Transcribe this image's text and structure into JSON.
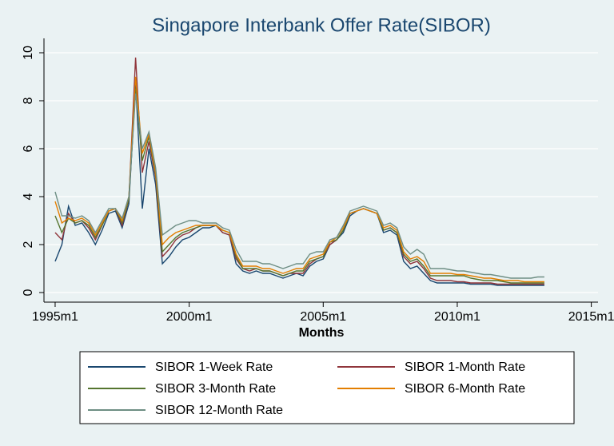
{
  "chart_data": {
    "type": "line",
    "title": "Singapore Interbank Offer Rate(SIBOR)",
    "x_label": "Months",
    "x": [
      420,
      423,
      426,
      429,
      432,
      435,
      438,
      441,
      444,
      447,
      450,
      453,
      456,
      459,
      462,
      465,
      468,
      471,
      474,
      477,
      480,
      483,
      486,
      489,
      492,
      495,
      498,
      501,
      504,
      507,
      510,
      513,
      516,
      519,
      522,
      525,
      528,
      531,
      534,
      537,
      540,
      543,
      546,
      549,
      552,
      555,
      558,
      561,
      564,
      567,
      570,
      573,
      576,
      579,
      582,
      585,
      588,
      591,
      594,
      597,
      600,
      603,
      606,
      609,
      612,
      615,
      618,
      621,
      624,
      627,
      630,
      633,
      636,
      639
    ],
    "series": [
      {
        "name": "SIBOR 1-Week Rate",
        "color": "#1a476f",
        "values": [
          1.3,
          2.0,
          3.6,
          2.8,
          2.9,
          2.5,
          2.0,
          2.6,
          3.3,
          3.4,
          2.7,
          3.7,
          8.7,
          3.5,
          6.0,
          4.5,
          1.2,
          1.5,
          1.9,
          2.2,
          2.3,
          2.5,
          2.7,
          2.7,
          2.8,
          2.5,
          2.4,
          1.2,
          0.9,
          0.8,
          0.9,
          0.8,
          0.8,
          0.7,
          0.6,
          0.7,
          0.8,
          0.7,
          1.1,
          1.3,
          1.4,
          2.0,
          2.2,
          2.5,
          3.2,
          3.4,
          3.5,
          3.4,
          3.3,
          2.5,
          2.6,
          2.4,
          1.3,
          1.0,
          1.1,
          0.8,
          0.5,
          0.4,
          0.4,
          0.4,
          0.4,
          0.4,
          0.35,
          0.35,
          0.35,
          0.35,
          0.3,
          0.3,
          0.3,
          0.3,
          0.3,
          0.3,
          0.3,
          0.3
        ]
      },
      {
        "name": "SIBOR 1-Month Rate",
        "color": "#90353b",
        "values": [
          2.5,
          2.2,
          3.3,
          2.9,
          3.0,
          2.7,
          2.2,
          2.8,
          3.4,
          3.5,
          2.8,
          3.9,
          9.8,
          5.0,
          6.3,
          4.8,
          1.5,
          1.8,
          2.2,
          2.4,
          2.5,
          2.7,
          2.8,
          2.8,
          2.8,
          2.5,
          2.4,
          1.4,
          1.0,
          0.9,
          1.0,
          0.9,
          0.9,
          0.8,
          0.7,
          0.8,
          0.8,
          0.8,
          1.2,
          1.4,
          1.5,
          2.0,
          2.2,
          2.6,
          3.3,
          3.4,
          3.5,
          3.4,
          3.3,
          2.6,
          2.7,
          2.5,
          1.5,
          1.2,
          1.3,
          1.0,
          0.6,
          0.5,
          0.5,
          0.5,
          0.45,
          0.45,
          0.4,
          0.4,
          0.4,
          0.4,
          0.35,
          0.35,
          0.35,
          0.35,
          0.35,
          0.35,
          0.35,
          0.35
        ]
      },
      {
        "name": "SIBOR 3-Month Rate",
        "color": "#55752f",
        "values": [
          3.2,
          2.5,
          3.1,
          2.9,
          3.0,
          2.8,
          2.3,
          2.8,
          3.4,
          3.5,
          2.9,
          3.9,
          8.5,
          5.5,
          6.5,
          4.9,
          1.7,
          2.0,
          2.3,
          2.5,
          2.6,
          2.7,
          2.8,
          2.8,
          2.8,
          2.6,
          2.5,
          1.5,
          1.0,
          1.0,
          1.0,
          0.9,
          0.9,
          0.8,
          0.7,
          0.8,
          0.9,
          0.9,
          1.3,
          1.4,
          1.5,
          2.1,
          2.2,
          2.6,
          3.3,
          3.4,
          3.5,
          3.4,
          3.3,
          2.6,
          2.7,
          2.5,
          1.6,
          1.3,
          1.4,
          1.1,
          0.7,
          0.7,
          0.7,
          0.7,
          0.7,
          0.7,
          0.6,
          0.55,
          0.5,
          0.5,
          0.5,
          0.45,
          0.4,
          0.4,
          0.4,
          0.4,
          0.4,
          0.4
        ]
      },
      {
        "name": "SIBOR 6-Month Rate",
        "color": "#e37e00",
        "values": [
          3.8,
          2.9,
          3.1,
          3.0,
          3.1,
          2.9,
          2.4,
          2.9,
          3.4,
          3.5,
          3.0,
          4.0,
          9.0,
          5.8,
          6.6,
          5.0,
          2.0,
          2.3,
          2.5,
          2.6,
          2.7,
          2.8,
          2.8,
          2.8,
          2.8,
          2.6,
          2.5,
          1.6,
          1.1,
          1.1,
          1.1,
          1.0,
          1.0,
          0.9,
          0.8,
          0.9,
          1.0,
          1.0,
          1.4,
          1.5,
          1.6,
          2.1,
          2.3,
          2.7,
          3.3,
          3.4,
          3.5,
          3.4,
          3.3,
          2.7,
          2.8,
          2.6,
          1.7,
          1.4,
          1.5,
          1.3,
          0.8,
          0.8,
          0.8,
          0.8,
          0.75,
          0.75,
          0.7,
          0.65,
          0.6,
          0.6,
          0.55,
          0.5,
          0.5,
          0.5,
          0.45,
          0.45,
          0.45,
          0.45
        ]
      },
      {
        "name": "SIBOR 12-Month Rate",
        "color": "#6e8e84",
        "values": [
          4.2,
          3.2,
          3.2,
          3.1,
          3.2,
          3.0,
          2.5,
          3.0,
          3.5,
          3.5,
          3.1,
          4.0,
          8.3,
          6.0,
          6.7,
          5.2,
          2.4,
          2.6,
          2.8,
          2.9,
          3.0,
          3.0,
          2.9,
          2.9,
          2.9,
          2.7,
          2.6,
          1.8,
          1.3,
          1.3,
          1.3,
          1.2,
          1.2,
          1.1,
          1.0,
          1.1,
          1.2,
          1.2,
          1.6,
          1.7,
          1.7,
          2.2,
          2.3,
          2.8,
          3.4,
          3.5,
          3.6,
          3.5,
          3.4,
          2.8,
          2.9,
          2.7,
          1.9,
          1.6,
          1.8,
          1.6,
          1.0,
          1.0,
          1.0,
          0.95,
          0.9,
          0.9,
          0.85,
          0.8,
          0.75,
          0.75,
          0.7,
          0.65,
          0.6,
          0.6,
          0.6,
          0.6,
          0.65,
          0.65
        ]
      }
    ],
    "xlim": [
      415,
      663
    ],
    "xticks": [
      {
        "value": 420,
        "label": "1995m1"
      },
      {
        "value": 480,
        "label": "2000m1"
      },
      {
        "value": 540,
        "label": "2005m1"
      },
      {
        "value": 600,
        "label": "2010m1"
      },
      {
        "value": 660,
        "label": "2015m1"
      }
    ],
    "ylim": [
      -0.4,
      10.6
    ],
    "yticks": [
      0,
      2,
      4,
      6,
      8,
      10
    ],
    "grid": true,
    "legend_position": "bottom"
  }
}
